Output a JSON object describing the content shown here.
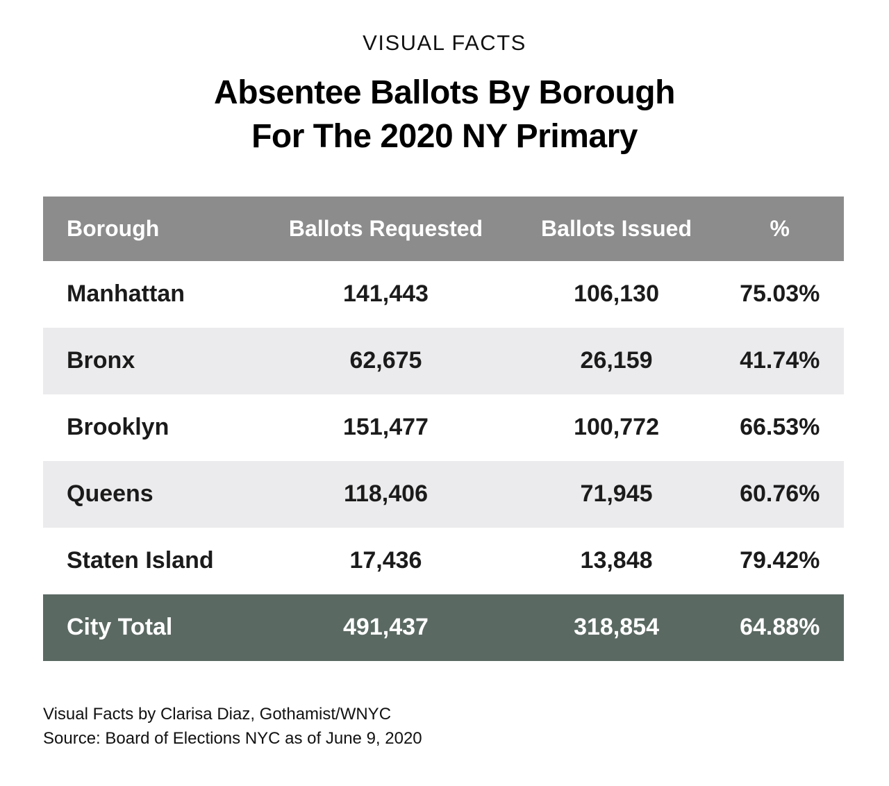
{
  "kicker": "VISUAL FACTS",
  "title_line1": "Absentee Ballots By Borough",
  "title_line2": "For The 2020 NY Primary",
  "table": {
    "columns": [
      "Borough",
      "Ballots Requested",
      "Ballots Issued",
      "%"
    ],
    "rows": [
      {
        "borough": "Manhattan",
        "requested": "141,443",
        "issued": "106,130",
        "pct": "75.03%"
      },
      {
        "borough": "Bronx",
        "requested": "62,675",
        "issued": "26,159",
        "pct": "41.74%"
      },
      {
        "borough": "Brooklyn",
        "requested": "151,477",
        "issued": "100,772",
        "pct": "66.53%"
      },
      {
        "borough": "Queens",
        "requested": "118,406",
        "issued": "71,945",
        "pct": "60.76%"
      },
      {
        "borough": "Staten Island",
        "requested": "17,436",
        "issued": "13,848",
        "pct": "79.42%"
      },
      {
        "borough": "City Total",
        "requested": "491,437",
        "issued": "318,854",
        "pct": "64.88%"
      }
    ]
  },
  "footer": {
    "credit": "Visual Facts by Clarisa Diaz, Gothamist/WNYC",
    "source": "Source: Board of Elections NYC as of June 9, 2020"
  },
  "colors": {
    "header_bg": "#8c8c8c",
    "header_text": "#ffffff",
    "row_bg": "#ffffff",
    "row_alt_bg": "#ebebed",
    "total_row_bg": "#5b6963",
    "total_row_text": "#ffffff",
    "body_text": "#1a1a1a"
  },
  "chart_data": {
    "type": "table",
    "title": "Absentee Ballots By Borough For The 2020 NY Primary",
    "subtitle": "VISUAL FACTS",
    "columns": [
      "Borough",
      "Ballots Requested",
      "Ballots Issued",
      "%"
    ],
    "rows": [
      [
        "Manhattan",
        141443,
        106130,
        75.03
      ],
      [
        "Bronx",
        62675,
        26159,
        41.74
      ],
      [
        "Brooklyn",
        151477,
        100772,
        66.53
      ],
      [
        "Queens",
        118406,
        71945,
        60.76
      ],
      [
        "Staten Island",
        17436,
        13848,
        79.42
      ],
      [
        "City Total",
        491437,
        318854,
        64.88
      ]
    ],
    "notes": [
      "Visual Facts by Clarisa Diaz, Gothamist/WNYC",
      "Source: Board of Elections NYC as of June 9, 2020"
    ]
  }
}
